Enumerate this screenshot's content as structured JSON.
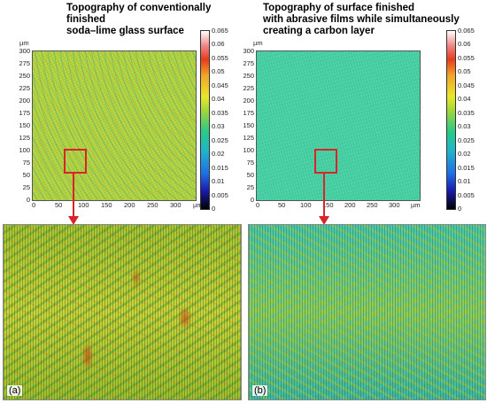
{
  "panel_a": {
    "title": "Topography of conventionally finished\nsoda–lime glass surface",
    "unit": "µm",
    "y_ticks": [
      "300",
      "275",
      "250",
      "225",
      "200",
      "175",
      "150",
      "125",
      "100",
      "75",
      "50",
      "25",
      "0"
    ],
    "x_ticks": [
      "0",
      "50",
      "100",
      "150",
      "200",
      "250",
      "300",
      "µm"
    ],
    "colorbar_ticks": [
      "0.065",
      "0.06",
      "0.055",
      "0.05",
      "0.045",
      "0.04",
      "0.035",
      "0.03",
      "0.025",
      "0.02",
      "0.015",
      "0.01",
      "0.005",
      "0"
    ],
    "label": "(a)"
  },
  "panel_b": {
    "title": "Topography of surface finished\nwith abrasive films while simultaneously\ncreating a carbon layer",
    "unit": "µm",
    "y_ticks": [
      "300",
      "275",
      "250",
      "225",
      "200",
      "175",
      "150",
      "125",
      "100",
      "75",
      "50",
      "25",
      "0"
    ],
    "x_ticks": [
      "0",
      "50",
      "100",
      "150",
      "200",
      "250",
      "300",
      "µm"
    ],
    "colorbar_ticks": [
      "0.065",
      "0.06",
      "0.055",
      "0.05",
      "0.045",
      "0.04",
      "0.035",
      "0.03",
      "0.025",
      "0.02",
      "0.015",
      "0.01",
      "0.005",
      "0"
    ],
    "label": "(b)"
  },
  "colors": {
    "a_base": "#b9d83a",
    "b_base": "#3ccfae",
    "highlight": "#d9242a"
  }
}
